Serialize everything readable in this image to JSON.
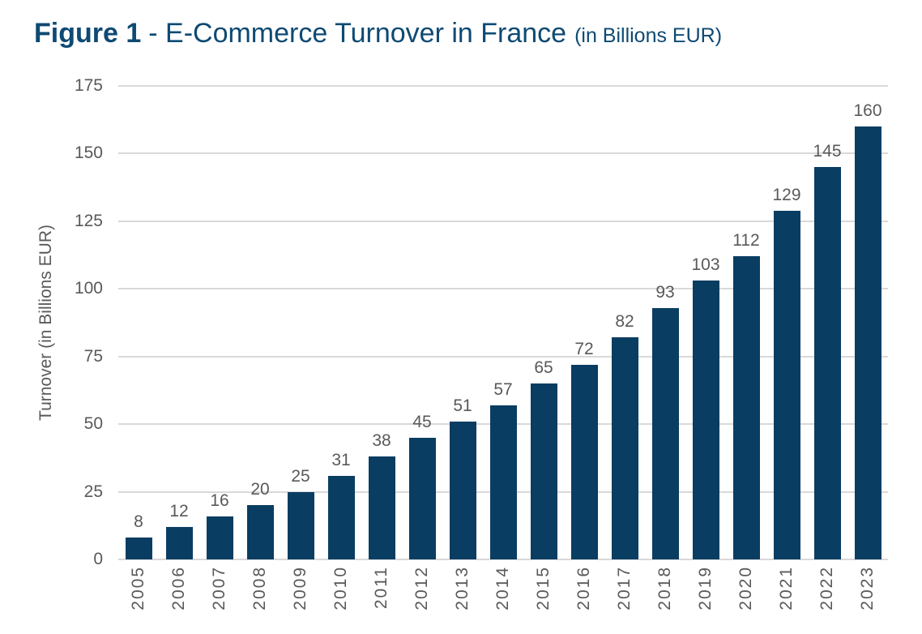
{
  "title": {
    "prefix": "Figure 1",
    "main": "- E-Commerce Turnover in France",
    "suffix": "(in Billions EUR)"
  },
  "colors": {
    "bar": "#0a3d62",
    "title_text": "#0e4a73",
    "axis_text": "#595959",
    "gridline": "#d9d9d9",
    "background": "#ffffff"
  },
  "chart_data": {
    "type": "bar",
    "title": "Figure 1 - E-Commerce Turnover in France (in Billions EUR)",
    "categories": [
      "2005",
      "2006",
      "2007",
      "2008",
      "2009",
      "2010",
      "2011",
      "2012",
      "2013",
      "2014",
      "2015",
      "2016",
      "2017",
      "2018",
      "2019",
      "2020",
      "2021",
      "2022",
      "2023"
    ],
    "values": [
      8,
      12,
      16,
      20,
      25,
      31,
      38,
      45,
      51,
      57,
      65,
      72,
      82,
      93,
      103,
      112,
      129,
      145,
      160
    ],
    "xlabel": "",
    "ylabel": "Turnover (in Billions EUR)",
    "ylim": [
      0,
      175
    ],
    "yticks": [
      0,
      25,
      50,
      75,
      100,
      125,
      150,
      175
    ],
    "grid": "horizontal",
    "bar_labels": true,
    "legend": "none",
    "x_tick_rotation_deg": 90
  }
}
